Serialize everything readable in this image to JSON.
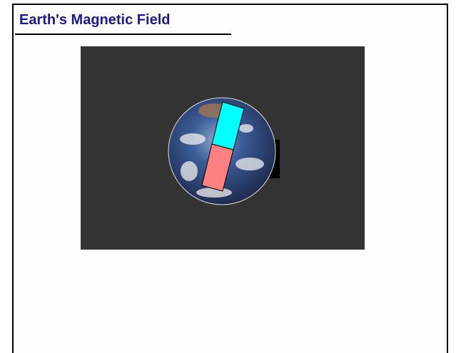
{
  "header": {
    "title": "Earth's Magnetic Field"
  }
}
